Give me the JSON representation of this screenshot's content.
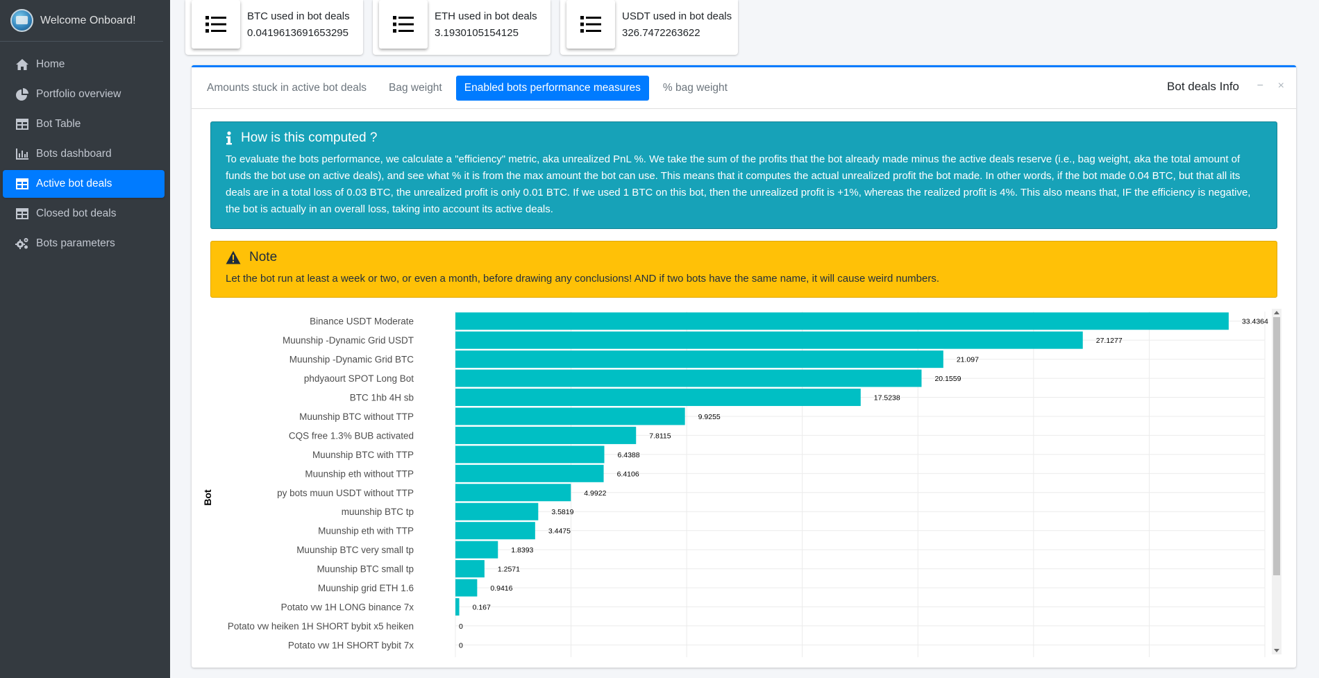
{
  "brand": {
    "title": "Welcome Onboard!"
  },
  "sidebar": {
    "items": [
      {
        "label": "Home",
        "icon": "home-icon"
      },
      {
        "label": "Portfolio overview",
        "icon": "pie-chart-icon"
      },
      {
        "label": "Bot Table",
        "icon": "table-icon"
      },
      {
        "label": "Bots dashboard",
        "icon": "bar-chart-icon"
      },
      {
        "label": "Active bot deals",
        "icon": "table-icon",
        "active": true
      },
      {
        "label": "Closed bot deals",
        "icon": "table-icon"
      },
      {
        "label": "Bots parameters",
        "icon": "gears-icon"
      }
    ]
  },
  "stats": [
    {
      "label": "BTC used in bot deals",
      "value": "0.0419613691653295",
      "icon": "list-icon"
    },
    {
      "label": "ETH used in bot deals",
      "value": "3.1930105154125",
      "icon": "list-icon"
    },
    {
      "label": "USDT used in bot deals",
      "value": "326.7472263622",
      "icon": "list-icon"
    }
  ],
  "card": {
    "title": "Bot deals Info",
    "tabs": [
      {
        "label": "Amounts stuck in active bot deals"
      },
      {
        "label": "Bag weight"
      },
      {
        "label": "Enabled bots performance measures",
        "active": true
      },
      {
        "label": "% bag weight"
      }
    ],
    "minimize_symbol": "−",
    "close_symbol": "×"
  },
  "info_callout": {
    "title": "How is this computed ?",
    "body": "To evaluate the bots performance, we calculate a \"efficiency\" metric, aka unrealized PnL %. We take the sum of the profits that the bot already made minus the active deals reserve (i.e., bag weight, aka the total amount of funds the bot use on active deals), and see what % it is from the max amount the bot can use. This means that it computes the actual unrealized profit the bot made. In other words, if the bot made 0.04 BTC, but that all its deals are in a total loss of 0.03 BTC, the unrealized profit is only 0.01 BTC. If we used 1 BTC on this bot, then the unrealized profit is +1%, whereas the realized profit is 4%. This also means that, IF the efficiency is negative, the bot is actually in an overall loss, taking into account its active deals."
  },
  "warning_callout": {
    "title": "Note",
    "body": "Let the bot run at least a week or two, or even a month, before drawing any conclusions! AND if two bots have the same name, it will cause weird numbers."
  },
  "chart_data": {
    "type": "bar",
    "orientation": "horizontal",
    "ylabel": "Bot",
    "xlabel": "",
    "xlim": [
      0,
      35
    ],
    "grid": true,
    "bar_color": "#00bfc4",
    "categories": [
      "Binance USDT Moderate",
      "Muunship -Dynamic Grid USDT",
      "Muunship -Dynamic Grid BTC",
      "phdyaourt SPOT  Long Bot",
      "BTC 1hb 4H sb",
      "Muunship BTC without TTP",
      "CQS free 1.3% BUB activated",
      "Muunship BTC with TTP",
      "Muunship eth without TTP",
      "py bots muun USDT without TTP",
      "muunship BTC tp",
      "Muunship eth with TTP",
      "Muunship BTC very small tp",
      "Muunship BTC small tp",
      "Muunship grid ETH 1.6",
      "Potato vw 1H LONG binance 7x",
      "Potato vw heiken 1H SHORT bybit x5 heiken",
      "Potato vw 1H SHORT bybit 7x"
    ],
    "values": [
      33.4364,
      27.1277,
      21.097,
      20.1559,
      17.5238,
      9.9255,
      7.8115,
      6.4388,
      6.4106,
      4.9922,
      3.5819,
      3.4475,
      1.8393,
      1.2571,
      0.9416,
      0.167,
      0,
      0
    ],
    "value_labels": [
      "33.4364",
      "27.1277",
      "21.097",
      "20.1559",
      "17.5238",
      "9.9255",
      "7.8115",
      "6.4388",
      "6.4106",
      "4.9922",
      "3.5819",
      "3.4475",
      "1.8393",
      "1.2571",
      "0.9416",
      "0.167",
      "0",
      "0"
    ]
  }
}
